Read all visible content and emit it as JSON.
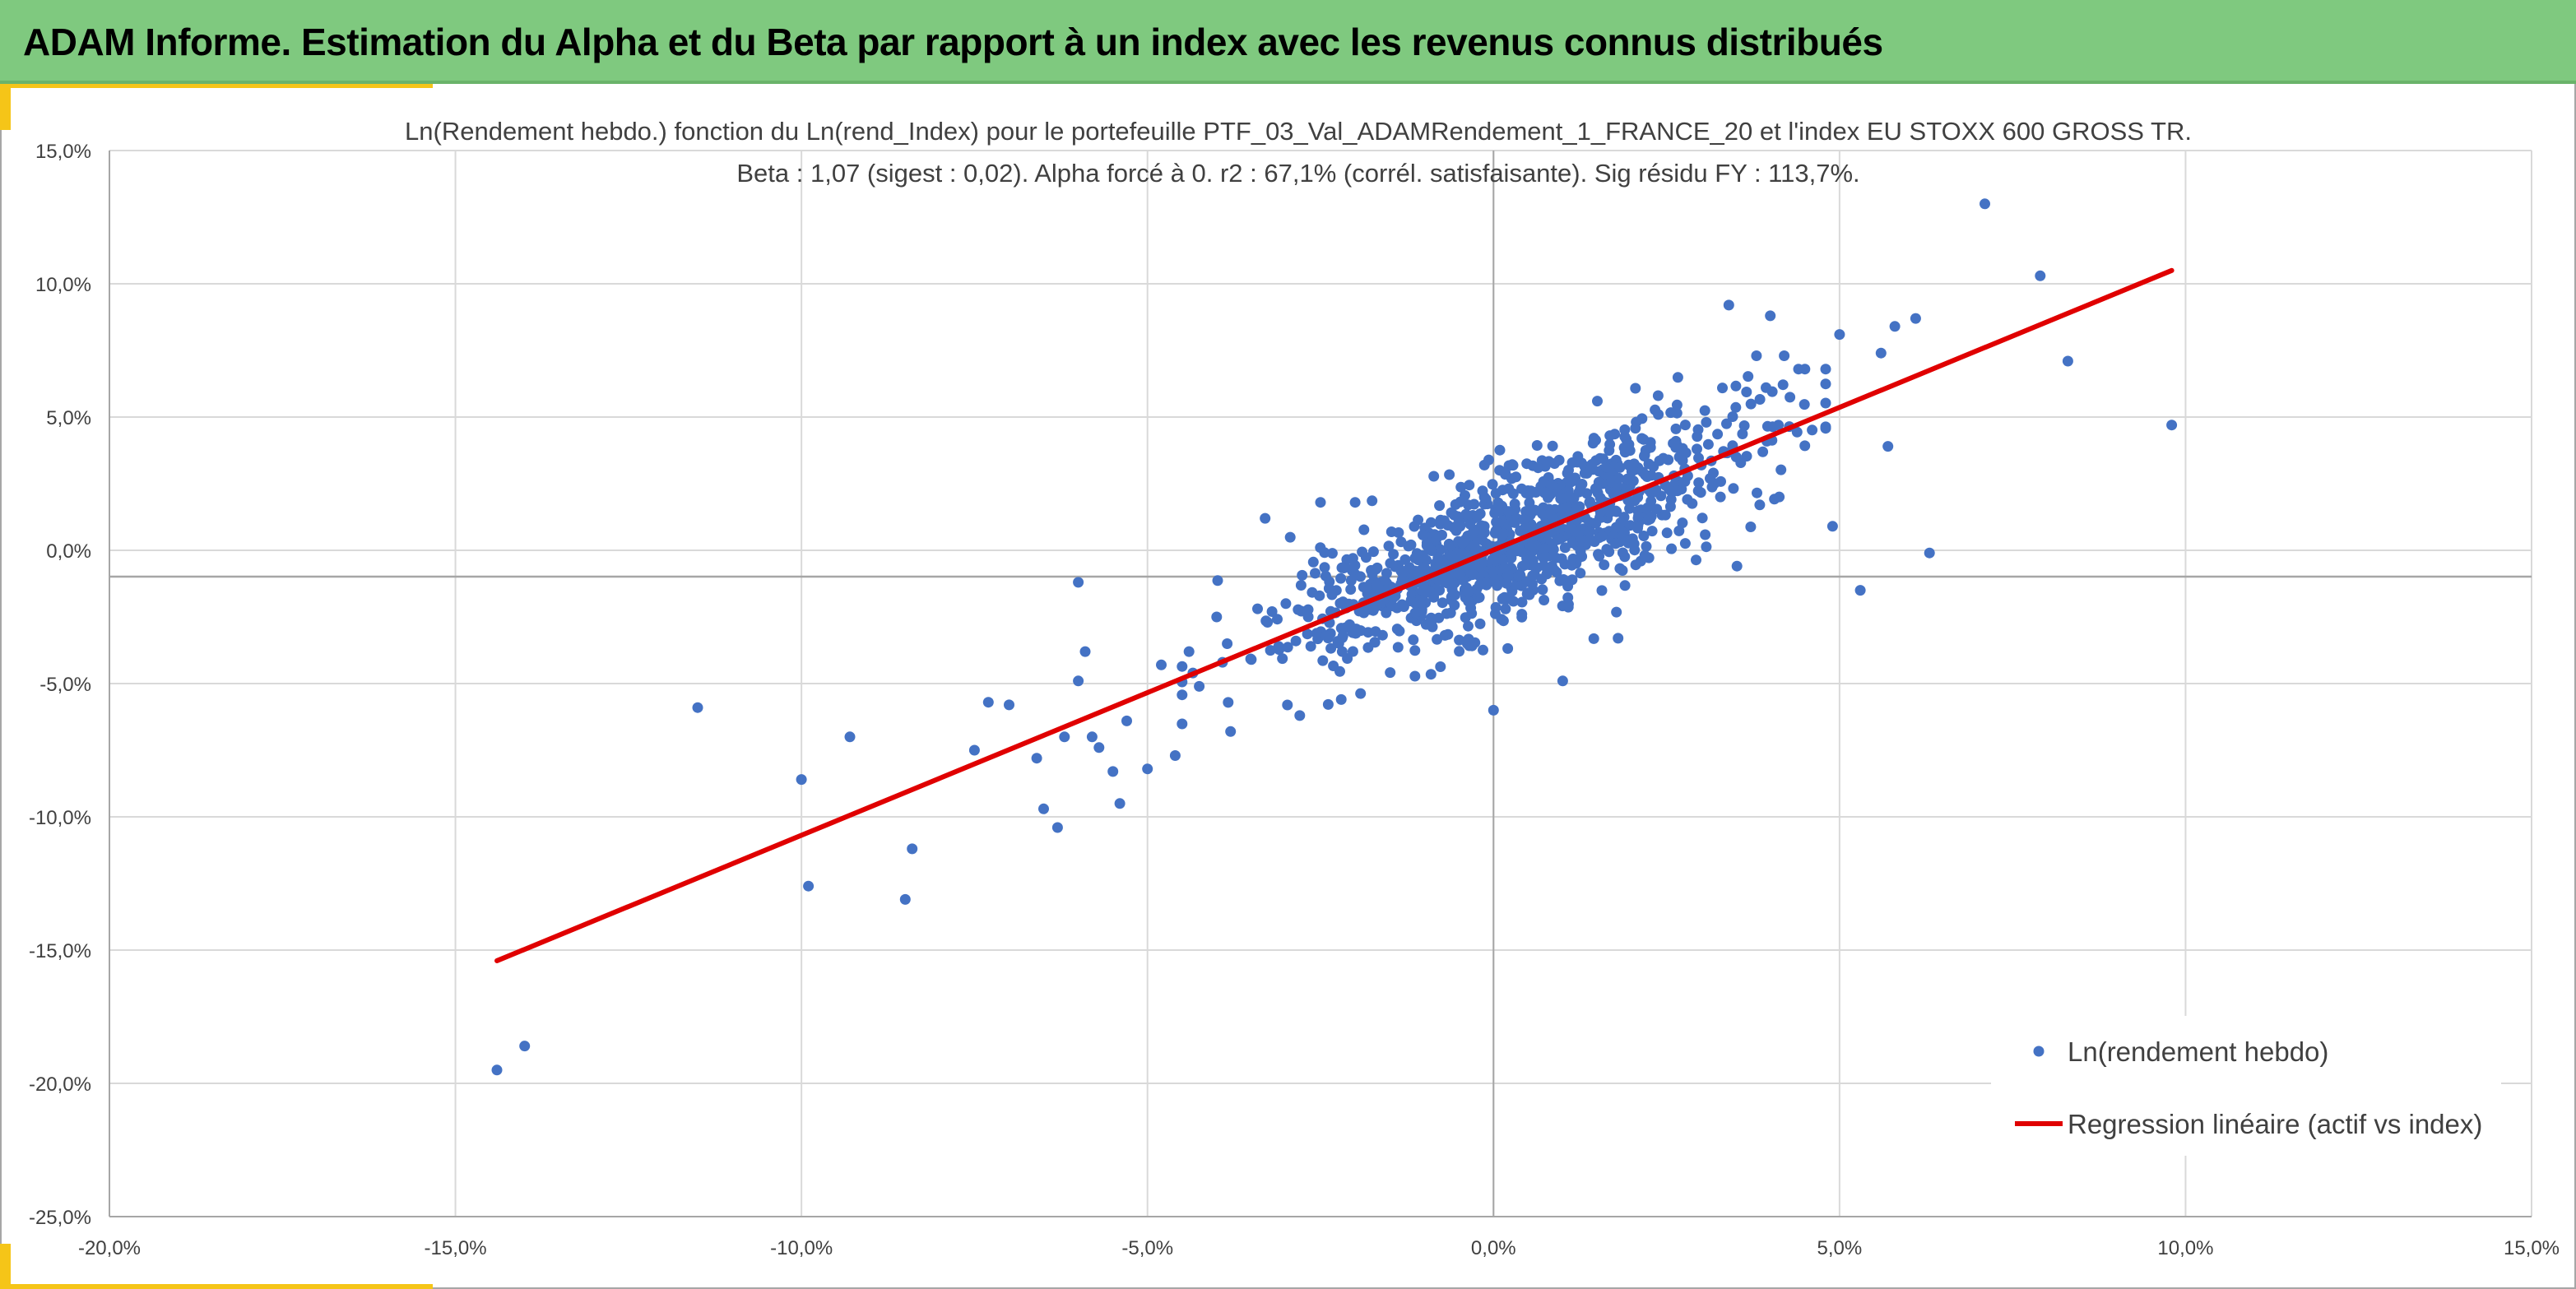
{
  "header": {
    "title": "ADAM Informe. Estimation du Alpha et du Beta par rapport à un index avec les revenus connus distribués"
  },
  "colors": {
    "header_bg": "#7fc97f",
    "accent": "#f5c518",
    "points": "#4472c4",
    "regression": "#e00000",
    "grid": "#d9d9d9",
    "axis": "#a6a6a6"
  },
  "chart_data": {
    "type": "scatter",
    "title": "Ln(Rendement hebdo.) fonction du Ln(rend_Index) pour le portefeuille PTF_03_Val_ADAMRendement_1_FRANCE_20 et l'index EU STOXX 600 GROSS TR.",
    "subtitle": "Beta : 1,07 (sigest : 0,02). Alpha forcé à 0. r2 : 67,1% (corrél. satisfaisante). Sig résidu FY : 113,7%.",
    "xlim": [
      -20,
      15
    ],
    "ylim": [
      -25,
      15
    ],
    "x_ticks": [
      -20,
      -15,
      -10,
      -5,
      0,
      5,
      10,
      15
    ],
    "y_ticks": [
      15,
      10,
      5,
      0,
      -5,
      -10,
      -15,
      -20,
      -25
    ],
    "x_tick_labels": [
      "-20,0%",
      "-15,0%",
      "-10,0%",
      "-5,0%",
      "0,0%",
      "5,0%",
      "10,0%",
      "15,0%"
    ],
    "y_tick_labels": [
      "15,0%",
      "10,0%",
      "5,0%",
      "0,0%",
      "-5,0%",
      "-10,0%",
      "-15,0%",
      "-20,0%",
      "-25,0%"
    ],
    "grid": true,
    "legend_position": "bottom-right",
    "series": [
      {
        "name": "Ln(rendement hebdo)",
        "kind": "scatter",
        "color": "#4472c4",
        "cloud": {
          "n": 1100,
          "x_mean": 0.4,
          "x_sd": 1.7,
          "beta": 1.07,
          "residual_sd": 1.35
        },
        "x": [
          -14.4,
          -14.0,
          -11.5,
          -10.0,
          -9.9,
          -9.3,
          -8.5,
          -8.4,
          -7.5,
          -7.3,
          -7.0,
          -6.6,
          -6.5,
          -6.3,
          -6.2,
          -6.0,
          -6.0,
          -5.9,
          -5.8,
          -5.7,
          -5.5,
          -5.4,
          -5.3,
          -5.0,
          -4.8,
          -4.6,
          -4.4,
          -4.0,
          -3.8,
          -3.5,
          -3.3,
          -3.0,
          -2.8,
          -2.5,
          -2.2,
          -2.0,
          0.0,
          1.0,
          1.5,
          1.8,
          3.4,
          3.8,
          4.0,
          4.2,
          4.5,
          4.9,
          5.0,
          5.3,
          5.6,
          5.7,
          5.8,
          6.1,
          6.3,
          7.1,
          7.9,
          8.3,
          9.8
        ],
        "y": [
          -19.5,
          -18.6,
          -5.9,
          -8.6,
          -12.6,
          -7.0,
          -13.1,
          -11.2,
          -7.5,
          -5.7,
          -5.8,
          -7.8,
          -9.7,
          -10.4,
          -7.0,
          -1.2,
          -4.9,
          -3.8,
          -7.0,
          -7.4,
          -8.3,
          -9.5,
          -6.4,
          -8.2,
          -4.3,
          -7.7,
          -3.8,
          -2.5,
          -6.8,
          -4.1,
          1.2,
          -2.0,
          -6.2,
          1.8,
          -5.6,
          1.8,
          -6.0,
          -4.9,
          5.6,
          -3.3,
          9.2,
          7.3,
          8.8,
          7.3,
          6.8,
          0.9,
          8.1,
          -1.5,
          7.4,
          3.9,
          8.4,
          8.7,
          -0.1,
          13.0,
          10.3,
          7.1,
          4.7
        ]
      },
      {
        "name": "Regression linéaire (actif vs index)",
        "kind": "line",
        "color": "#e00000",
        "x": [
          -14.4,
          9.8
        ],
        "y": [
          -15.4,
          10.5
        ]
      }
    ]
  }
}
